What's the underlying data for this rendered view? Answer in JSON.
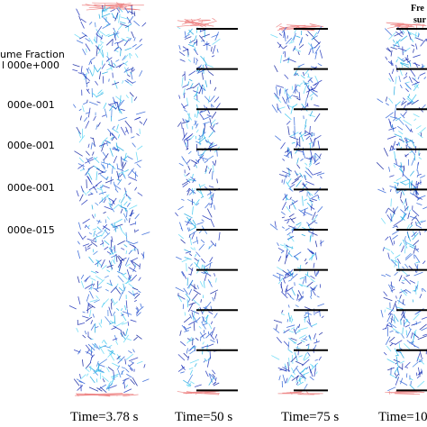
{
  "legend": {
    "title": "ume Fraction",
    "subtitle": "l",
    "labels": [
      "000e+000",
      "000e-001",
      "000e-001",
      "000e-001",
      "000e-015"
    ]
  },
  "panels": [
    {
      "caption": "Time=3.78 s"
    },
    {
      "caption": "Time=50 s"
    },
    {
      "caption": "Time=75 s"
    },
    {
      "caption": "Time=10"
    }
  ],
  "annotation": [
    "Fre",
    "sur"
  ]
}
